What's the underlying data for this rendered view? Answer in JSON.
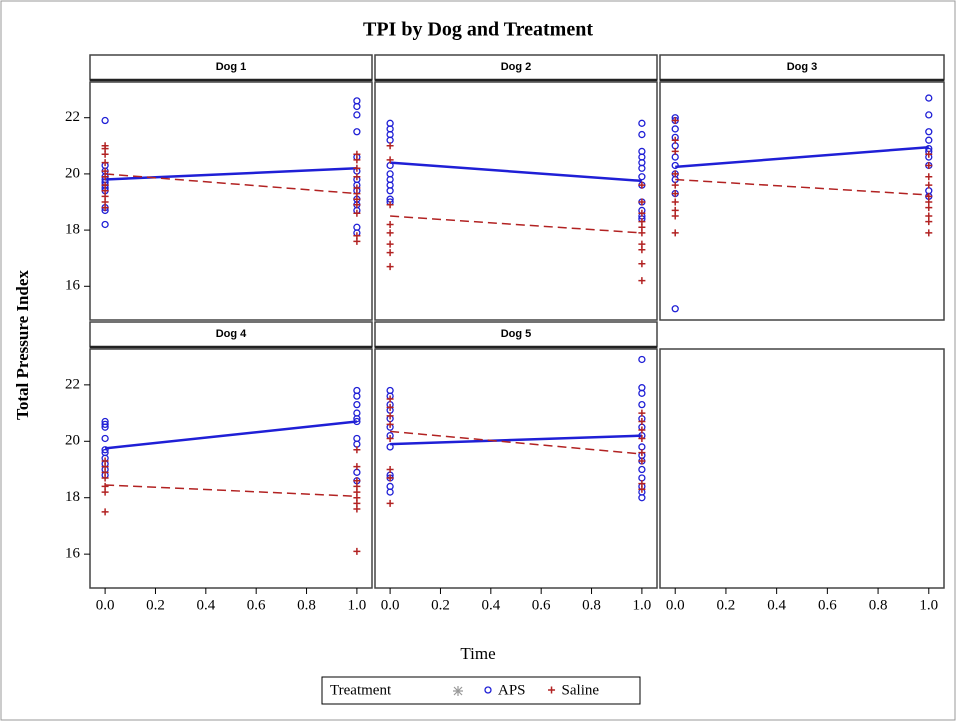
{
  "chart_data": {
    "type": "panel-scatter",
    "title": "TPI by Dog and Treatment",
    "x_label": "Time",
    "y_label": "Total Pressure Index",
    "xlim": [
      -0.06,
      1.06
    ],
    "ylim": [
      14.8,
      23.2
    ],
    "xticks": [
      {
        "value": 0,
        "label": "0.0"
      },
      0.2,
      0.4,
      0.6,
      0.8,
      {
        "value": 1,
        "label": "1.0"
      }
    ],
    "yticks": [
      16,
      18,
      20,
      22
    ],
    "legend": {
      "title": "Treatment"
    },
    "series": [
      {
        "name": "APS",
        "color": "#1f1fd6",
        "marker": "circle",
        "line": "solid"
      },
      {
        "name": "Saline",
        "color": "#b22222",
        "marker": "plus",
        "line": "dashed"
      }
    ],
    "panels": [
      {
        "title": "Dog 1",
        "series": [
          {
            "x": [
              0,
              0,
              0,
              0,
              0,
              0,
              0,
              0,
              0,
              0,
              0,
              0,
              1,
              1,
              1,
              1,
              1,
              1,
              1,
              1,
              1,
              1,
              1,
              1,
              1,
              1
            ],
            "values": [
              21.9,
              20.3,
              20.1,
              19.9,
              19.8,
              19.7,
              19.6,
              19.5,
              19.4,
              18.8,
              18.7,
              18.2,
              22.6,
              22.4,
              22.1,
              21.5,
              20.6,
              20.1,
              19.8,
              19.6,
              19.4,
              19.1,
              18.9,
              18.7,
              18.1,
              17.9
            ],
            "fit": {
              "x": [
                0,
                1
              ],
              "values": [
                19.8,
                20.2
              ]
            }
          },
          {
            "x": [
              0,
              0,
              0,
              0,
              0,
              0,
              0,
              0,
              0,
              0,
              0,
              1,
              1,
              1,
              1,
              1,
              1,
              1,
              1,
              1,
              1,
              1
            ],
            "values": [
              21.0,
              20.9,
              20.7,
              20.4,
              20.1,
              19.9,
              19.6,
              19.4,
              19.2,
              19.0,
              18.8,
              20.7,
              20.5,
              20.2,
              19.9,
              19.5,
              19.3,
              19.1,
              18.9,
              18.6,
              17.8,
              17.6
            ],
            "fit": {
              "x": [
                0,
                1
              ],
              "values": [
                20.0,
                19.3
              ]
            }
          }
        ]
      },
      {
        "title": "Dog 2",
        "series": [
          {
            "x": [
              0,
              0,
              0,
              0,
              0,
              0,
              0,
              0,
              0,
              0,
              0,
              1,
              1,
              1,
              1,
              1,
              1,
              1,
              1,
              1,
              1,
              1,
              1
            ],
            "values": [
              21.8,
              21.6,
              21.4,
              21.2,
              20.3,
              20.0,
              19.8,
              19.6,
              19.4,
              19.1,
              19.0,
              21.8,
              21.4,
              20.8,
              20.6,
              20.4,
              20.2,
              19.9,
              19.6,
              19.0,
              18.7,
              18.5,
              18.4
            ],
            "fit": {
              "x": [
                0,
                1
              ],
              "values": [
                20.4,
                19.75
              ]
            }
          },
          {
            "x": [
              0,
              0,
              0,
              0,
              0,
              0,
              0,
              0,
              1,
              1,
              1,
              1,
              1,
              1,
              1,
              1,
              1,
              1
            ],
            "values": [
              21.0,
              20.5,
              18.9,
              18.2,
              17.9,
              17.5,
              17.2,
              16.7,
              19.6,
              19.0,
              18.6,
              18.3,
              18.1,
              17.9,
              17.5,
              17.3,
              16.8,
              16.2
            ],
            "fit": {
              "x": [
                0,
                1
              ],
              "values": [
                18.5,
                17.9
              ]
            }
          }
        ]
      },
      {
        "title": "Dog 3",
        "series": [
          {
            "x": [
              0,
              0,
              0,
              0,
              0,
              0,
              0,
              0,
              0,
              0,
              0,
              1,
              1,
              1,
              1,
              1,
              1,
              1,
              1,
              1,
              1
            ],
            "values": [
              22.0,
              21.9,
              21.6,
              21.3,
              21.0,
              20.6,
              20.3,
              20.0,
              19.8,
              19.3,
              15.2,
              22.7,
              22.1,
              21.5,
              21.2,
              20.9,
              20.8,
              20.6,
              20.3,
              19.4,
              19.2
            ],
            "fit": {
              "x": [
                0,
                1
              ],
              "values": [
                20.25,
                20.95
              ]
            }
          },
          {
            "x": [
              0,
              0,
              0,
              0,
              0,
              0,
              0,
              0,
              0,
              0,
              1,
              1,
              1,
              1,
              1,
              1,
              1,
              1,
              1,
              1
            ],
            "values": [
              21.9,
              21.2,
              20.8,
              20.0,
              19.6,
              19.3,
              19.0,
              18.7,
              18.5,
              17.9,
              20.7,
              20.3,
              19.9,
              19.6,
              19.2,
              19.0,
              18.8,
              18.5,
              18.3,
              17.9
            ],
            "fit": {
              "x": [
                0,
                1
              ],
              "values": [
                19.8,
                19.25
              ]
            }
          }
        ]
      },
      {
        "title": "Dog 4",
        "series": [
          {
            "x": [
              0,
              0,
              0,
              0,
              0,
              0,
              0,
              0,
              0,
              0,
              1,
              1,
              1,
              1,
              1,
              1,
              1,
              1,
              1,
              1
            ],
            "values": [
              20.7,
              20.6,
              20.5,
              20.1,
              19.7,
              19.6,
              19.4,
              19.2,
              19.0,
              18.8,
              21.8,
              21.6,
              21.3,
              21.0,
              20.8,
              20.7,
              20.1,
              19.9,
              18.9,
              18.6
            ],
            "fit": {
              "x": [
                0,
                1
              ],
              "values": [
                19.75,
                20.7
              ]
            }
          },
          {
            "x": [
              0,
              0,
              0,
              0,
              0,
              0,
              0,
              1,
              1,
              1,
              1,
              1,
              1,
              1,
              1,
              1
            ],
            "values": [
              19.3,
              19.1,
              18.9,
              18.7,
              18.4,
              18.2,
              17.5,
              19.7,
              19.1,
              18.6,
              18.4,
              18.2,
              18.0,
              17.8,
              17.6,
              16.1
            ],
            "fit": {
              "x": [
                0,
                1
              ],
              "values": [
                18.45,
                18.05
              ]
            }
          }
        ]
      },
      {
        "title": "Dog 5",
        "series": [
          {
            "x": [
              0,
              0,
              0,
              0,
              0,
              0,
              0,
              0,
              0,
              0,
              0,
              0,
              1,
              1,
              1,
              1,
              1,
              1,
              1,
              1,
              1,
              1,
              1,
              1,
              1,
              1,
              1
            ],
            "values": [
              21.8,
              21.6,
              21.3,
              21.1,
              20.8,
              20.5,
              20.2,
              19.8,
              18.8,
              18.7,
              18.4,
              18.2,
              22.9,
              21.9,
              21.7,
              21.3,
              20.8,
              20.5,
              20.2,
              19.8,
              19.5,
              19.3,
              19.0,
              18.7,
              18.4,
              18.2,
              18.0
            ],
            "fit": {
              "x": [
                0,
                1
              ],
              "values": [
                19.9,
                20.2
              ]
            }
          },
          {
            "x": [
              0,
              0,
              0,
              0,
              0,
              0,
              0,
              0,
              1,
              1,
              1,
              1,
              1,
              1,
              1,
              1
            ],
            "values": [
              21.5,
              21.2,
              20.9,
              20.6,
              20.1,
              19.0,
              18.7,
              17.8,
              21.0,
              20.7,
              20.4,
              20.1,
              19.6,
              19.3,
              18.5,
              18.3
            ],
            "fit": {
              "x": [
                0,
                1
              ],
              "values": [
                20.35,
                19.55
              ]
            }
          }
        ]
      }
    ]
  }
}
